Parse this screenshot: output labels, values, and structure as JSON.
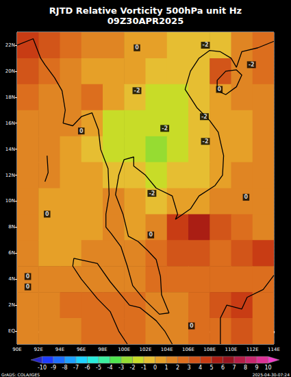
{
  "chart_data": {
    "type": "heatmap",
    "title": "RJTD Relative Vorticity 500hPa unit Hz",
    "subtitle": "09Z30APR2025",
    "x": [
      91,
      93,
      95,
      97,
      99,
      101,
      103,
      105,
      107,
      109,
      111,
      113
    ],
    "y": [
      22,
      20,
      18,
      16,
      14,
      12,
      10,
      8,
      6,
      4,
      2,
      0
    ],
    "values": [
      [
        4,
        3,
        2,
        1.5,
        1,
        0.5,
        0.5,
        -0.5,
        -1,
        -1,
        1,
        2
      ],
      [
        3.5,
        2,
        1,
        0.5,
        0.5,
        0,
        -0.5,
        -1,
        -0.5,
        3,
        1.5,
        2
      ],
      [
        2,
        1,
        1,
        2.5,
        0,
        -1,
        -1.5,
        -1.5,
        -0.5,
        0.5,
        1,
        1.5
      ],
      [
        1,
        1.5,
        1,
        0,
        -1.5,
        -1.5,
        -2,
        -2,
        -1,
        0,
        0.5,
        1
      ],
      [
        1,
        1,
        0.5,
        -0.5,
        -1.5,
        -1.5,
        -2.5,
        -1.5,
        -1,
        0,
        0.5,
        1
      ],
      [
        1,
        1,
        0.5,
        0,
        -1,
        -1,
        -1.5,
        -1,
        -0.5,
        0.5,
        1,
        1
      ],
      [
        1,
        0.5,
        0.5,
        0.5,
        1,
        0,
        -0.5,
        0,
        0.5,
        1,
        1,
        1
      ],
      [
        1,
        0.5,
        0,
        0.5,
        1.5,
        0.5,
        1.5,
        4,
        5,
        3,
        2,
        1.5
      ],
      [
        1,
        0.5,
        0.5,
        1,
        1,
        1,
        2,
        3,
        3,
        2.5,
        3,
        4
      ],
      [
        1,
        1,
        1,
        1.5,
        1.5,
        1.5,
        2.5,
        2,
        2,
        2,
        2.5,
        2.5
      ],
      [
        1,
        1.5,
        2,
        2,
        2.5,
        2,
        1.5,
        1.5,
        2,
        3,
        4.5,
        2
      ],
      [
        1,
        1.5,
        1.5,
        2,
        2,
        2,
        1.5,
        1.5,
        2,
        2.5,
        3,
        2
      ]
    ],
    "xlim": [
      90,
      114
    ],
    "ylim": [
      -1,
      23
    ],
    "xticks": [
      {
        "value": 90,
        "label": "90E"
      },
      {
        "value": 92,
        "label": "92E"
      },
      {
        "value": 94,
        "label": "94E"
      },
      {
        "value": 96,
        "label": "96E"
      },
      {
        "value": 98,
        "label": "98E"
      },
      {
        "value": 100,
        "label": "100E"
      },
      {
        "value": 102,
        "label": "102E"
      },
      {
        "value": 104,
        "label": "104E"
      },
      {
        "value": 106,
        "label": "106E"
      },
      {
        "value": 108,
        "label": "108E"
      },
      {
        "value": 110,
        "label": "110E"
      },
      {
        "value": 112,
        "label": "112E"
      },
      {
        "value": 114,
        "label": "114E"
      }
    ],
    "yticks": [
      {
        "value": 0,
        "label": "EQ"
      },
      {
        "value": 2,
        "label": "2N"
      },
      {
        "value": 4,
        "label": "4N"
      },
      {
        "value": 6,
        "label": "6N"
      },
      {
        "value": 8,
        "label": "8N"
      },
      {
        "value": 10,
        "label": "10N"
      },
      {
        "value": 12,
        "label": "12N"
      },
      {
        "value": 14,
        "label": "14N"
      },
      {
        "value": 16,
        "label": "16N"
      },
      {
        "value": 18,
        "label": "18N"
      },
      {
        "value": 20,
        "label": "20N"
      },
      {
        "value": 22,
        "label": "22N"
      }
    ],
    "grid": true,
    "colorbar": {
      "levels": [
        -10,
        -9,
        -8,
        -7,
        -6,
        -5,
        -4,
        -3,
        -2,
        -1,
        0,
        1,
        2,
        3,
        4,
        5,
        6,
        7,
        8,
        9,
        10
      ],
      "colors": [
        "#2828c8",
        "#1e3cff",
        "#1e6eff",
        "#1ea0ff",
        "#1ed2ff",
        "#28ebdc",
        "#3cf0a0",
        "#50e650",
        "#96dc32",
        "#c8dc28",
        "#e6be32",
        "#e6a028",
        "#e08523",
        "#dc6e1e",
        "#d25519",
        "#c83c14",
        "#aa1e14",
        "#96141e",
        "#b41e46",
        "#c8286e",
        "#dc3296",
        "#f03cc8"
      ]
    },
    "contour_labels": [
      {
        "lon": 101.2,
        "lat": 21.8,
        "label": "0"
      },
      {
        "lon": 107.6,
        "lat": 22.0,
        "label": "-2"
      },
      {
        "lon": 111.9,
        "lat": 20.5,
        "label": "-2"
      },
      {
        "lon": 108.9,
        "lat": 18.6,
        "label": "0"
      },
      {
        "lon": 101.2,
        "lat": 18.5,
        "label": "-2"
      },
      {
        "lon": 107.5,
        "lat": 16.5,
        "label": "-2"
      },
      {
        "lon": 96.0,
        "lat": 15.4,
        "label": "0"
      },
      {
        "lon": 103.8,
        "lat": 15.6,
        "label": "-2"
      },
      {
        "lon": 107.6,
        "lat": 14.6,
        "label": "-2"
      },
      {
        "lon": 102.6,
        "lat": 10.6,
        "label": "-2"
      },
      {
        "lon": 111.4,
        "lat": 10.3,
        "label": "0"
      },
      {
        "lon": 92.8,
        "lat": 9.0,
        "label": "0"
      },
      {
        "lon": 102.5,
        "lat": 7.4,
        "label": "0"
      },
      {
        "lon": 91.0,
        "lat": 4.2,
        "label": "0"
      },
      {
        "lon": 91.0,
        "lat": 3.4,
        "label": "0"
      },
      {
        "lon": 106.3,
        "lat": 0.4,
        "label": "0"
      }
    ],
    "coastlines": [
      [
        [
          90,
          22.0
        ],
        [
          91.5,
          22.5
        ],
        [
          92.2,
          21
        ],
        [
          92.6,
          20.5
        ],
        [
          93.5,
          19.5
        ],
        [
          94.2,
          18.5
        ],
        [
          94.5,
          17
        ],
        [
          94.3,
          16
        ],
        [
          95.2,
          15.8
        ],
        [
          96,
          16.5
        ],
        [
          97,
          16.8
        ],
        [
          97.6,
          15.5
        ],
        [
          97.8,
          14
        ],
        [
          98.5,
          12.5
        ],
        [
          98.6,
          10.5
        ],
        [
          98.3,
          9
        ],
        [
          98.3,
          8
        ],
        [
          98.8,
          7.5
        ],
        [
          99.7,
          6.5
        ],
        [
          100.3,
          5
        ],
        [
          100.8,
          3.5
        ],
        [
          101.8,
          2.5
        ],
        [
          103.3,
          1.3
        ],
        [
          104.2,
          1.4
        ],
        [
          103.5,
          2.8
        ],
        [
          103.4,
          4.2
        ],
        [
          103,
          5.5
        ],
        [
          102.2,
          6.2
        ],
        [
          101.3,
          6.9
        ],
        [
          100.4,
          7.3
        ],
        [
          99.9,
          9
        ],
        [
          99.2,
          10.5
        ],
        [
          99.5,
          12
        ],
        [
          100,
          13.2
        ],
        [
          100.9,
          13.4
        ],
        [
          100.9,
          12.7
        ],
        [
          102,
          12
        ],
        [
          103,
          11
        ],
        [
          104.5,
          10.4
        ],
        [
          105,
          9
        ],
        [
          104.8,
          8.6
        ],
        [
          106.2,
          9.4
        ],
        [
          107,
          10.4
        ],
        [
          108.5,
          11.2
        ],
        [
          109.2,
          12
        ],
        [
          109.3,
          13.5
        ],
        [
          108.8,
          15.3
        ],
        [
          108,
          16.2
        ],
        [
          106.8,
          17.2
        ],
        [
          105.7,
          18.6
        ],
        [
          106.2,
          20
        ],
        [
          107,
          21
        ],
        [
          108,
          21.6
        ],
        [
          109,
          21.5
        ],
        [
          110,
          21
        ],
        [
          110.5,
          20.3
        ],
        [
          111,
          21.5
        ],
        [
          112.5,
          21.8
        ],
        [
          114,
          22.3
        ]
      ],
      [
        [
          108.7,
          18.5
        ],
        [
          109.5,
          18.2
        ],
        [
          110.5,
          18.8
        ],
        [
          111,
          19.7
        ],
        [
          110.5,
          20.1
        ],
        [
          109.5,
          20
        ],
        [
          108.7,
          19.3
        ],
        [
          108.7,
          18.5
        ]
      ],
      [
        [
          95.3,
          5.6
        ],
        [
          97.5,
          5.2
        ],
        [
          98.7,
          3.8
        ],
        [
          100.5,
          2
        ],
        [
          101.5,
          1.8
        ],
        [
          103,
          0.8
        ],
        [
          103.8,
          0
        ],
        [
          104.5,
          -1
        ]
      ],
      [
        [
          95.3,
          5.6
        ],
        [
          95.2,
          5
        ],
        [
          96,
          4
        ],
        [
          97.5,
          2.5
        ],
        [
          98.7,
          1.5
        ],
        [
          99.5,
          0
        ],
        [
          100.3,
          -1
        ]
      ],
      [
        [
          109,
          -1
        ],
        [
          109,
          1
        ],
        [
          109.6,
          2
        ],
        [
          111,
          1.7
        ],
        [
          111.5,
          2.6
        ],
        [
          113,
          3.2
        ],
        [
          114,
          4.3
        ]
      ],
      [
        [
          92.8,
          13.5
        ],
        [
          92.9,
          12.2
        ],
        [
          92.6,
          11.5
        ]
      ]
    ],
    "annotations": [
      "GrADS: COLA/IGES",
      "2025-04-30-07:24"
    ]
  }
}
